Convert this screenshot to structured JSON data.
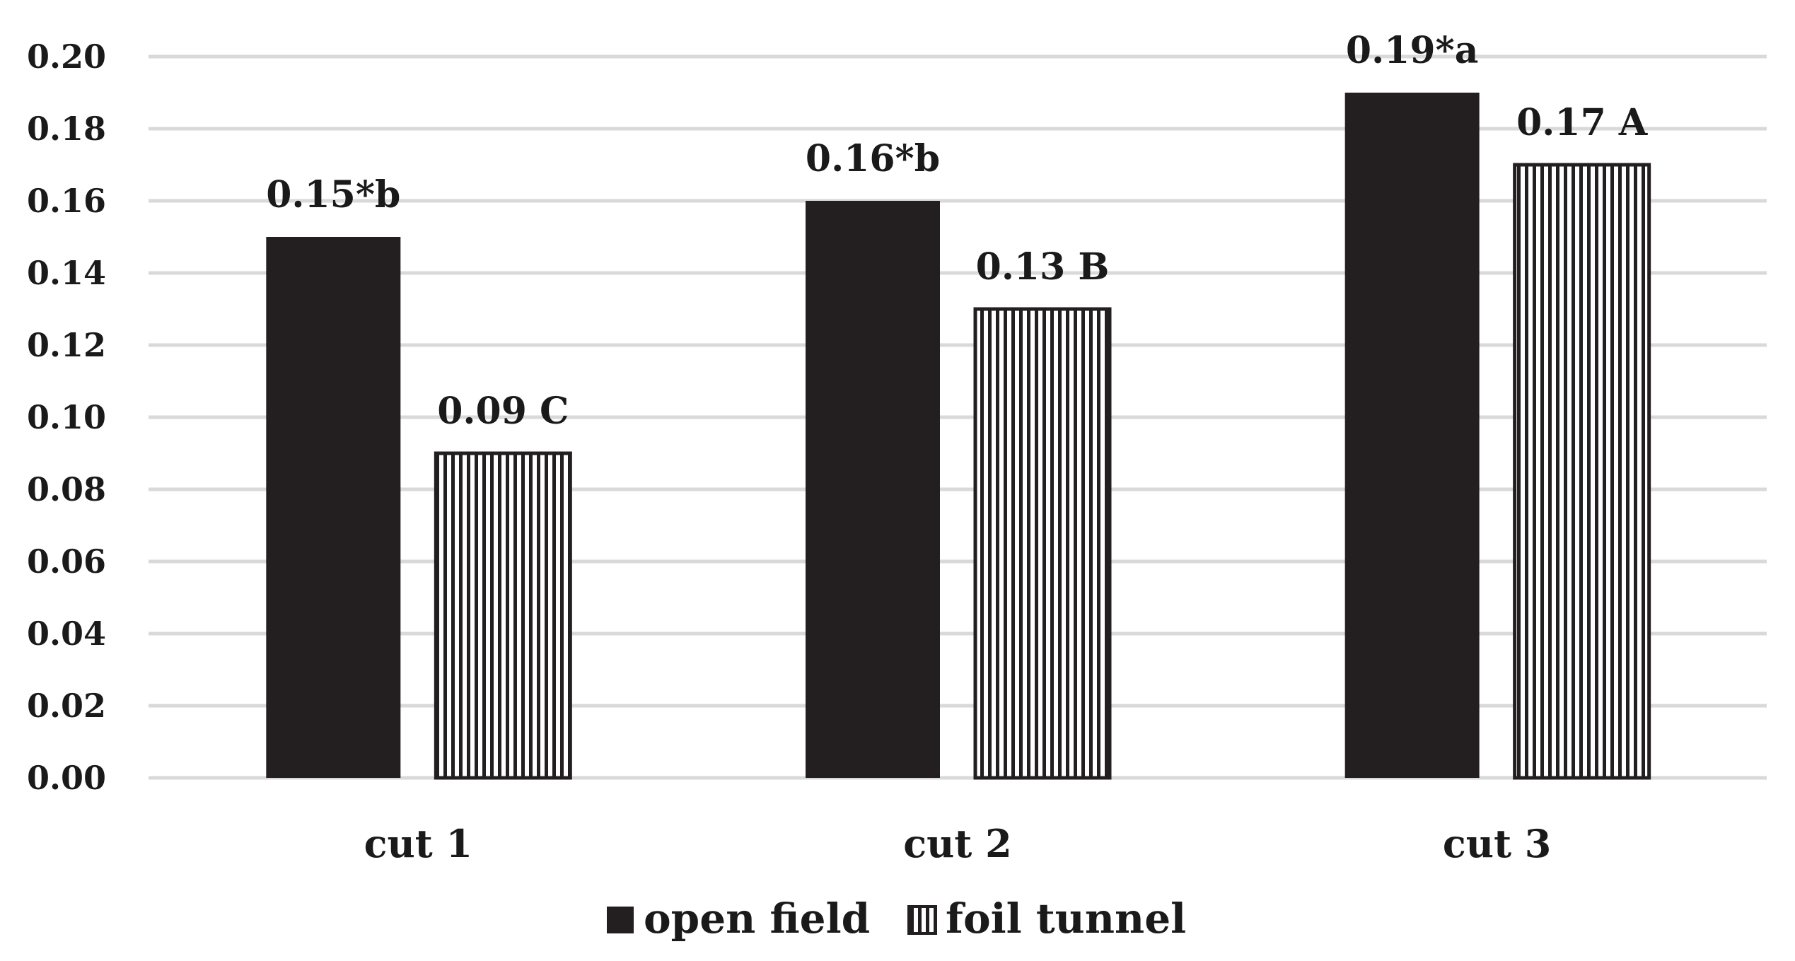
{
  "chart_data": {
    "type": "bar",
    "title": "",
    "xlabel": "",
    "ylabel": "",
    "ylim": [
      0,
      0.2
    ],
    "yticks": [
      "0.00",
      "0.02",
      "0.04",
      "0.06",
      "0.08",
      "0.10",
      "0.12",
      "0.14",
      "0.16",
      "0.18",
      "0.20"
    ],
    "categories": [
      "cut 1",
      "cut 2",
      "cut 3"
    ],
    "series": [
      {
        "name": "open field",
        "fill": "solid",
        "color": "#231f20",
        "values": [
          0.15,
          0.16,
          0.19
        ],
        "labels": [
          "0.15*b",
          "0.16*b",
          "0.19*a"
        ]
      },
      {
        "name": "foil tunnel",
        "fill": "vertical-stripes",
        "color": "#231f20",
        "values": [
          0.09,
          0.13,
          0.17
        ],
        "labels": [
          "0.09 C",
          "0.13 B",
          "0.17 A"
        ]
      }
    ],
    "grid": true,
    "legend_position": "bottom-center"
  }
}
